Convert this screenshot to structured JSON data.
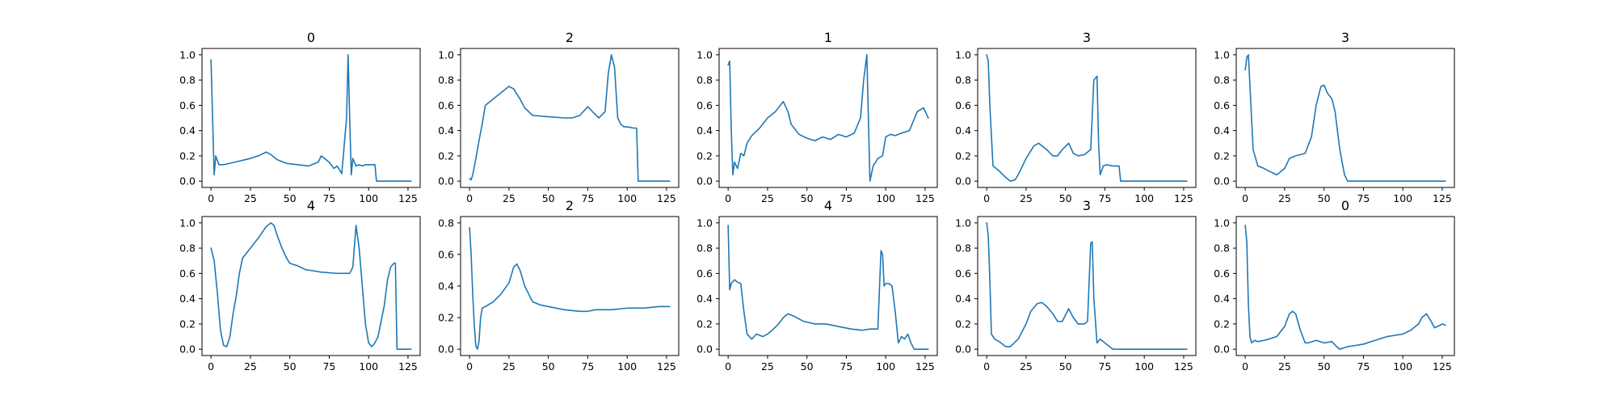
{
  "chart_data": [
    {
      "type": "line",
      "title": "0",
      "xlim": [
        0,
        127
      ],
      "ylim": [
        0,
        1
      ],
      "xticks": [
        "0",
        "25",
        "50",
        "75",
        "100",
        "125"
      ],
      "yticks": [
        "0.0",
        "0.2",
        "0.4",
        "0.6",
        "0.8",
        "1.0"
      ],
      "x": [
        0,
        2,
        3,
        5,
        8,
        15,
        25,
        30,
        35,
        38,
        42,
        48,
        55,
        62,
        68,
        70,
        72,
        75,
        78,
        80,
        83,
        86,
        87,
        88,
        89,
        90,
        92,
        94,
        96,
        98,
        100,
        102,
        104,
        105,
        106,
        110,
        120,
        127
      ],
      "values": [
        0.96,
        0.05,
        0.2,
        0.13,
        0.13,
        0.15,
        0.18,
        0.2,
        0.23,
        0.21,
        0.17,
        0.14,
        0.13,
        0.12,
        0.15,
        0.2,
        0.18,
        0.15,
        0.1,
        0.12,
        0.06,
        0.5,
        1.0,
        0.5,
        0.05,
        0.18,
        0.12,
        0.13,
        0.12,
        0.13,
        0.13,
        0.13,
        0.13,
        0.0,
        0.0,
        0.0,
        0.0,
        0.0
      ]
    },
    {
      "type": "line",
      "title": "2",
      "xlim": [
        0,
        127
      ],
      "ylim": [
        0,
        1
      ],
      "xticks": [
        "0",
        "25",
        "50",
        "75",
        "100",
        "125"
      ],
      "yticks": [
        "0.0",
        "0.2",
        "0.4",
        "0.6",
        "0.8",
        "1.0"
      ],
      "x": [
        0,
        1,
        2,
        4,
        6,
        8,
        10,
        15,
        20,
        25,
        28,
        32,
        35,
        40,
        50,
        60,
        65,
        70,
        75,
        78,
        82,
        86,
        88,
        90,
        92,
        94,
        96,
        98,
        100,
        104,
        106,
        107,
        110,
        120,
        127
      ],
      "values": [
        0.02,
        0.01,
        0.05,
        0.18,
        0.32,
        0.45,
        0.6,
        0.65,
        0.7,
        0.75,
        0.73,
        0.65,
        0.58,
        0.52,
        0.51,
        0.5,
        0.5,
        0.52,
        0.59,
        0.55,
        0.5,
        0.55,
        0.85,
        1.0,
        0.9,
        0.5,
        0.45,
        0.43,
        0.43,
        0.42,
        0.42,
        0.0,
        0.0,
        0.0,
        0.0
      ]
    },
    {
      "type": "line",
      "title": "1",
      "xlim": [
        0,
        127
      ],
      "ylim": [
        0,
        1
      ],
      "xticks": [
        "0",
        "25",
        "50",
        "75",
        "100",
        "125"
      ],
      "yticks": [
        "0.0",
        "0.2",
        "0.4",
        "0.6",
        "0.8",
        "1.0"
      ],
      "x": [
        0,
        1,
        2,
        3,
        4,
        6,
        8,
        10,
        12,
        15,
        20,
        25,
        30,
        35,
        38,
        40,
        45,
        50,
        55,
        60,
        65,
        70,
        75,
        80,
        84,
        86,
        88,
        89,
        90,
        92,
        95,
        98,
        100,
        103,
        106,
        110,
        115,
        120,
        124,
        127
      ],
      "values": [
        0.92,
        0.95,
        0.4,
        0.05,
        0.15,
        0.1,
        0.22,
        0.2,
        0.3,
        0.36,
        0.42,
        0.5,
        0.55,
        0.63,
        0.55,
        0.45,
        0.37,
        0.34,
        0.32,
        0.35,
        0.33,
        0.37,
        0.35,
        0.38,
        0.5,
        0.8,
        1.0,
        0.5,
        0.0,
        0.12,
        0.18,
        0.2,
        0.35,
        0.37,
        0.36,
        0.38,
        0.4,
        0.55,
        0.58,
        0.5
      ]
    },
    {
      "type": "line",
      "title": "3",
      "xlim": [
        0,
        127
      ],
      "ylim": [
        0,
        1
      ],
      "xticks": [
        "0",
        "25",
        "50",
        "75",
        "100",
        "125"
      ],
      "yticks": [
        "0.0",
        "0.2",
        "0.4",
        "0.6",
        "0.8",
        "1.0"
      ],
      "x": [
        0,
        1,
        2,
        4,
        6,
        8,
        12,
        15,
        18,
        20,
        25,
        30,
        33,
        35,
        38,
        42,
        45,
        48,
        52,
        55,
        58,
        62,
        66,
        68,
        70,
        71,
        72,
        74,
        76,
        80,
        84,
        85,
        90,
        100,
        127
      ],
      "values": [
        1.0,
        0.95,
        0.6,
        0.12,
        0.1,
        0.08,
        0.03,
        0.0,
        0.01,
        0.05,
        0.18,
        0.28,
        0.3,
        0.28,
        0.25,
        0.2,
        0.2,
        0.25,
        0.3,
        0.22,
        0.2,
        0.21,
        0.25,
        0.8,
        0.83,
        0.3,
        0.05,
        0.12,
        0.13,
        0.12,
        0.12,
        0.0,
        0.0,
        0.0,
        0.0
      ]
    },
    {
      "type": "line",
      "title": "3",
      "xlim": [
        0,
        127
      ],
      "ylim": [
        0,
        1
      ],
      "xticks": [
        "0",
        "25",
        "50",
        "75",
        "100",
        "125"
      ],
      "yticks": [
        "0.0",
        "0.2",
        "0.4",
        "0.6",
        "0.8",
        "1.0"
      ],
      "x": [
        0,
        1,
        2,
        3,
        5,
        8,
        12,
        15,
        20,
        25,
        28,
        32,
        38,
        42,
        45,
        48,
        50,
        52,
        55,
        57,
        60,
        63,
        65,
        70,
        80,
        127
      ],
      "values": [
        0.88,
        0.98,
        1.0,
        0.75,
        0.25,
        0.12,
        0.1,
        0.08,
        0.05,
        0.1,
        0.18,
        0.2,
        0.22,
        0.35,
        0.6,
        0.75,
        0.76,
        0.7,
        0.65,
        0.55,
        0.25,
        0.05,
        0.0,
        0.0,
        0.0,
        0.0
      ]
    },
    {
      "type": "line",
      "title": "4",
      "xlim": [
        0,
        127
      ],
      "ylim": [
        0,
        1
      ],
      "xticks": [
        "0",
        "25",
        "50",
        "75",
        "100",
        "125"
      ],
      "yticks": [
        "0.0",
        "0.2",
        "0.4",
        "0.6",
        "0.8",
        "1.0"
      ],
      "x": [
        0,
        2,
        4,
        6,
        8,
        10,
        12,
        14,
        16,
        18,
        20,
        25,
        30,
        35,
        38,
        40,
        42,
        45,
        48,
        50,
        55,
        60,
        70,
        80,
        88,
        90,
        92,
        94,
        96,
        98,
        100,
        102,
        104,
        106,
        110,
        112,
        114,
        116,
        117,
        118,
        120,
        127
      ],
      "values": [
        0.8,
        0.7,
        0.45,
        0.15,
        0.03,
        0.02,
        0.1,
        0.28,
        0.42,
        0.6,
        0.72,
        0.8,
        0.88,
        0.97,
        1.0,
        0.98,
        0.9,
        0.8,
        0.72,
        0.68,
        0.66,
        0.63,
        0.61,
        0.6,
        0.6,
        0.65,
        0.98,
        0.8,
        0.5,
        0.2,
        0.05,
        0.02,
        0.05,
        0.1,
        0.35,
        0.55,
        0.65,
        0.68,
        0.68,
        0.0,
        0.0,
        0.0
      ]
    },
    {
      "type": "line",
      "title": "2",
      "xlim": [
        0,
        127
      ],
      "ylim": [
        0,
        0.8
      ],
      "xticks": [
        "0",
        "25",
        "50",
        "75",
        "100",
        "125"
      ],
      "yticks": [
        "0.0",
        "0.2",
        "0.4",
        "0.6",
        "0.8"
      ],
      "x": [
        0,
        1,
        2,
        3,
        4,
        5,
        6,
        7,
        8,
        10,
        15,
        20,
        25,
        28,
        30,
        32,
        35,
        40,
        45,
        50,
        60,
        70,
        75,
        80,
        90,
        100,
        110,
        120,
        125,
        127
      ],
      "values": [
        0.77,
        0.6,
        0.35,
        0.15,
        0.02,
        0.0,
        0.05,
        0.2,
        0.26,
        0.27,
        0.3,
        0.35,
        0.42,
        0.52,
        0.54,
        0.5,
        0.4,
        0.3,
        0.28,
        0.27,
        0.25,
        0.24,
        0.24,
        0.25,
        0.25,
        0.26,
        0.26,
        0.27,
        0.27,
        0.27
      ]
    },
    {
      "type": "line",
      "title": "4",
      "xlim": [
        0,
        127
      ],
      "ylim": [
        0,
        1
      ],
      "xticks": [
        "0",
        "25",
        "50",
        "75",
        "100",
        "125"
      ],
      "yticks": [
        "0.0",
        "0.2",
        "0.4",
        "0.6",
        "0.8",
        "1.0"
      ],
      "x": [
        0,
        1,
        2,
        4,
        6,
        8,
        10,
        12,
        15,
        18,
        22,
        25,
        28,
        32,
        35,
        38,
        42,
        48,
        55,
        62,
        70,
        78,
        85,
        90,
        95,
        97,
        98,
        99,
        100,
        102,
        104,
        106,
        108,
        110,
        112,
        114,
        116,
        118,
        120,
        127
      ],
      "values": [
        0.98,
        0.47,
        0.52,
        0.55,
        0.53,
        0.52,
        0.3,
        0.12,
        0.08,
        0.12,
        0.1,
        0.12,
        0.15,
        0.2,
        0.25,
        0.28,
        0.26,
        0.22,
        0.2,
        0.2,
        0.18,
        0.16,
        0.15,
        0.16,
        0.16,
        0.78,
        0.75,
        0.5,
        0.52,
        0.52,
        0.5,
        0.3,
        0.05,
        0.1,
        0.08,
        0.12,
        0.05,
        0.0,
        0.0,
        0.0
      ]
    },
    {
      "type": "line",
      "title": "3",
      "xlim": [
        0,
        127
      ],
      "ylim": [
        0,
        1
      ],
      "xticks": [
        "0",
        "25",
        "50",
        "75",
        "100",
        "125"
      ],
      "yticks": [
        "0.0",
        "0.2",
        "0.4",
        "0.6",
        "0.8",
        "1.0"
      ],
      "x": [
        0,
        1,
        2,
        3,
        5,
        8,
        12,
        15,
        20,
        25,
        28,
        32,
        35,
        38,
        42,
        45,
        48,
        52,
        55,
        58,
        62,
        64,
        66,
        67,
        68,
        70,
        72,
        75,
        80,
        90,
        127
      ],
      "values": [
        1.0,
        0.9,
        0.55,
        0.12,
        0.08,
        0.06,
        0.02,
        0.02,
        0.08,
        0.2,
        0.3,
        0.36,
        0.37,
        0.34,
        0.28,
        0.22,
        0.22,
        0.32,
        0.25,
        0.2,
        0.2,
        0.22,
        0.84,
        0.85,
        0.4,
        0.05,
        0.08,
        0.05,
        0.0,
        0.0,
        0.0
      ]
    },
    {
      "type": "line",
      "title": "0",
      "xlim": [
        0,
        127
      ],
      "ylim": [
        0,
        1
      ],
      "xticks": [
        "0",
        "25",
        "50",
        "75",
        "100",
        "125"
      ],
      "yticks": [
        "0.0",
        "0.2",
        "0.4",
        "0.6",
        "0.8",
        "1.0"
      ],
      "x": [
        0,
        1,
        2,
        3,
        4,
        6,
        8,
        12,
        15,
        20,
        25,
        28,
        30,
        32,
        35,
        38,
        40,
        45,
        50,
        55,
        58,
        60,
        65,
        70,
        75,
        80,
        85,
        90,
        95,
        100,
        105,
        110,
        112,
        115,
        118,
        120,
        122,
        125,
        127
      ],
      "values": [
        0.98,
        0.85,
        0.35,
        0.1,
        0.05,
        0.07,
        0.06,
        0.07,
        0.08,
        0.1,
        0.18,
        0.28,
        0.3,
        0.28,
        0.15,
        0.05,
        0.05,
        0.07,
        0.05,
        0.06,
        0.02,
        0.0,
        0.02,
        0.03,
        0.04,
        0.06,
        0.08,
        0.1,
        0.11,
        0.12,
        0.15,
        0.2,
        0.25,
        0.28,
        0.22,
        0.17,
        0.18,
        0.2,
        0.19
      ]
    }
  ]
}
